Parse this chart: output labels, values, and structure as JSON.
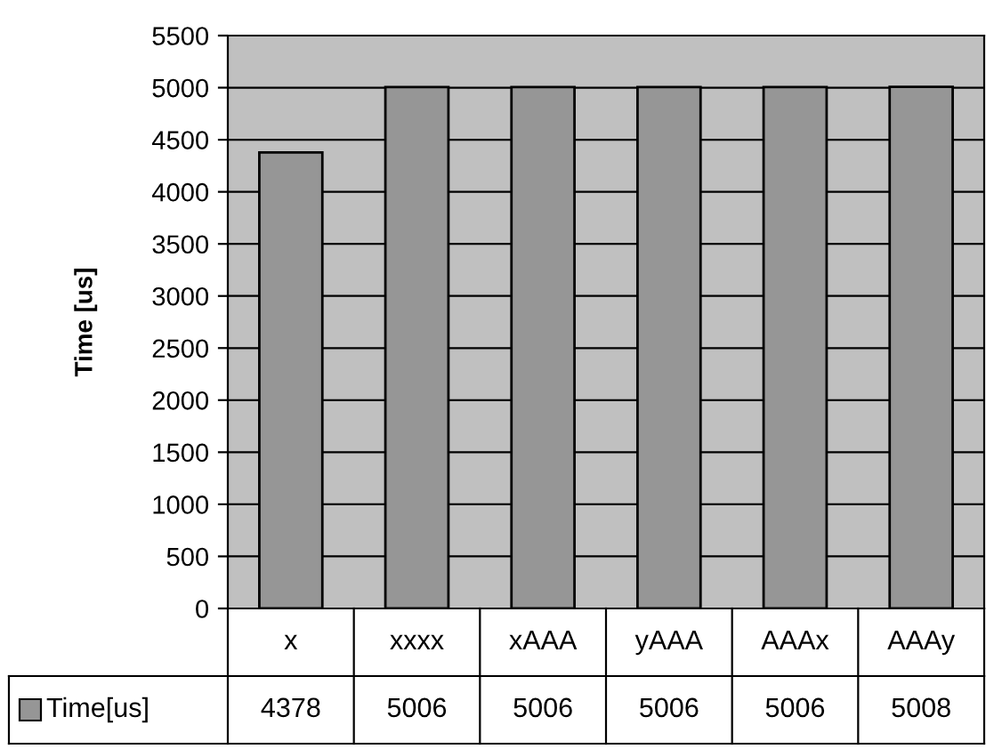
{
  "chart_data": {
    "type": "bar",
    "ylabel": "Time [us]",
    "categories": [
      "x",
      "xxxx",
      "xAAA",
      "yAAA",
      "AAAx",
      "AAAy"
    ],
    "series": [
      {
        "name": "Time[us]",
        "color": "#969696",
        "values": [
          4378,
          5006,
          5006,
          5006,
          5006,
          5008
        ]
      }
    ],
    "ylim": [
      0,
      5500
    ],
    "yticks": [
      0,
      500,
      1000,
      1500,
      2000,
      2500,
      3000,
      3500,
      4000,
      4500,
      5000,
      5500
    ],
    "grid": "y",
    "legend": "bottom",
    "data_labels": true
  }
}
